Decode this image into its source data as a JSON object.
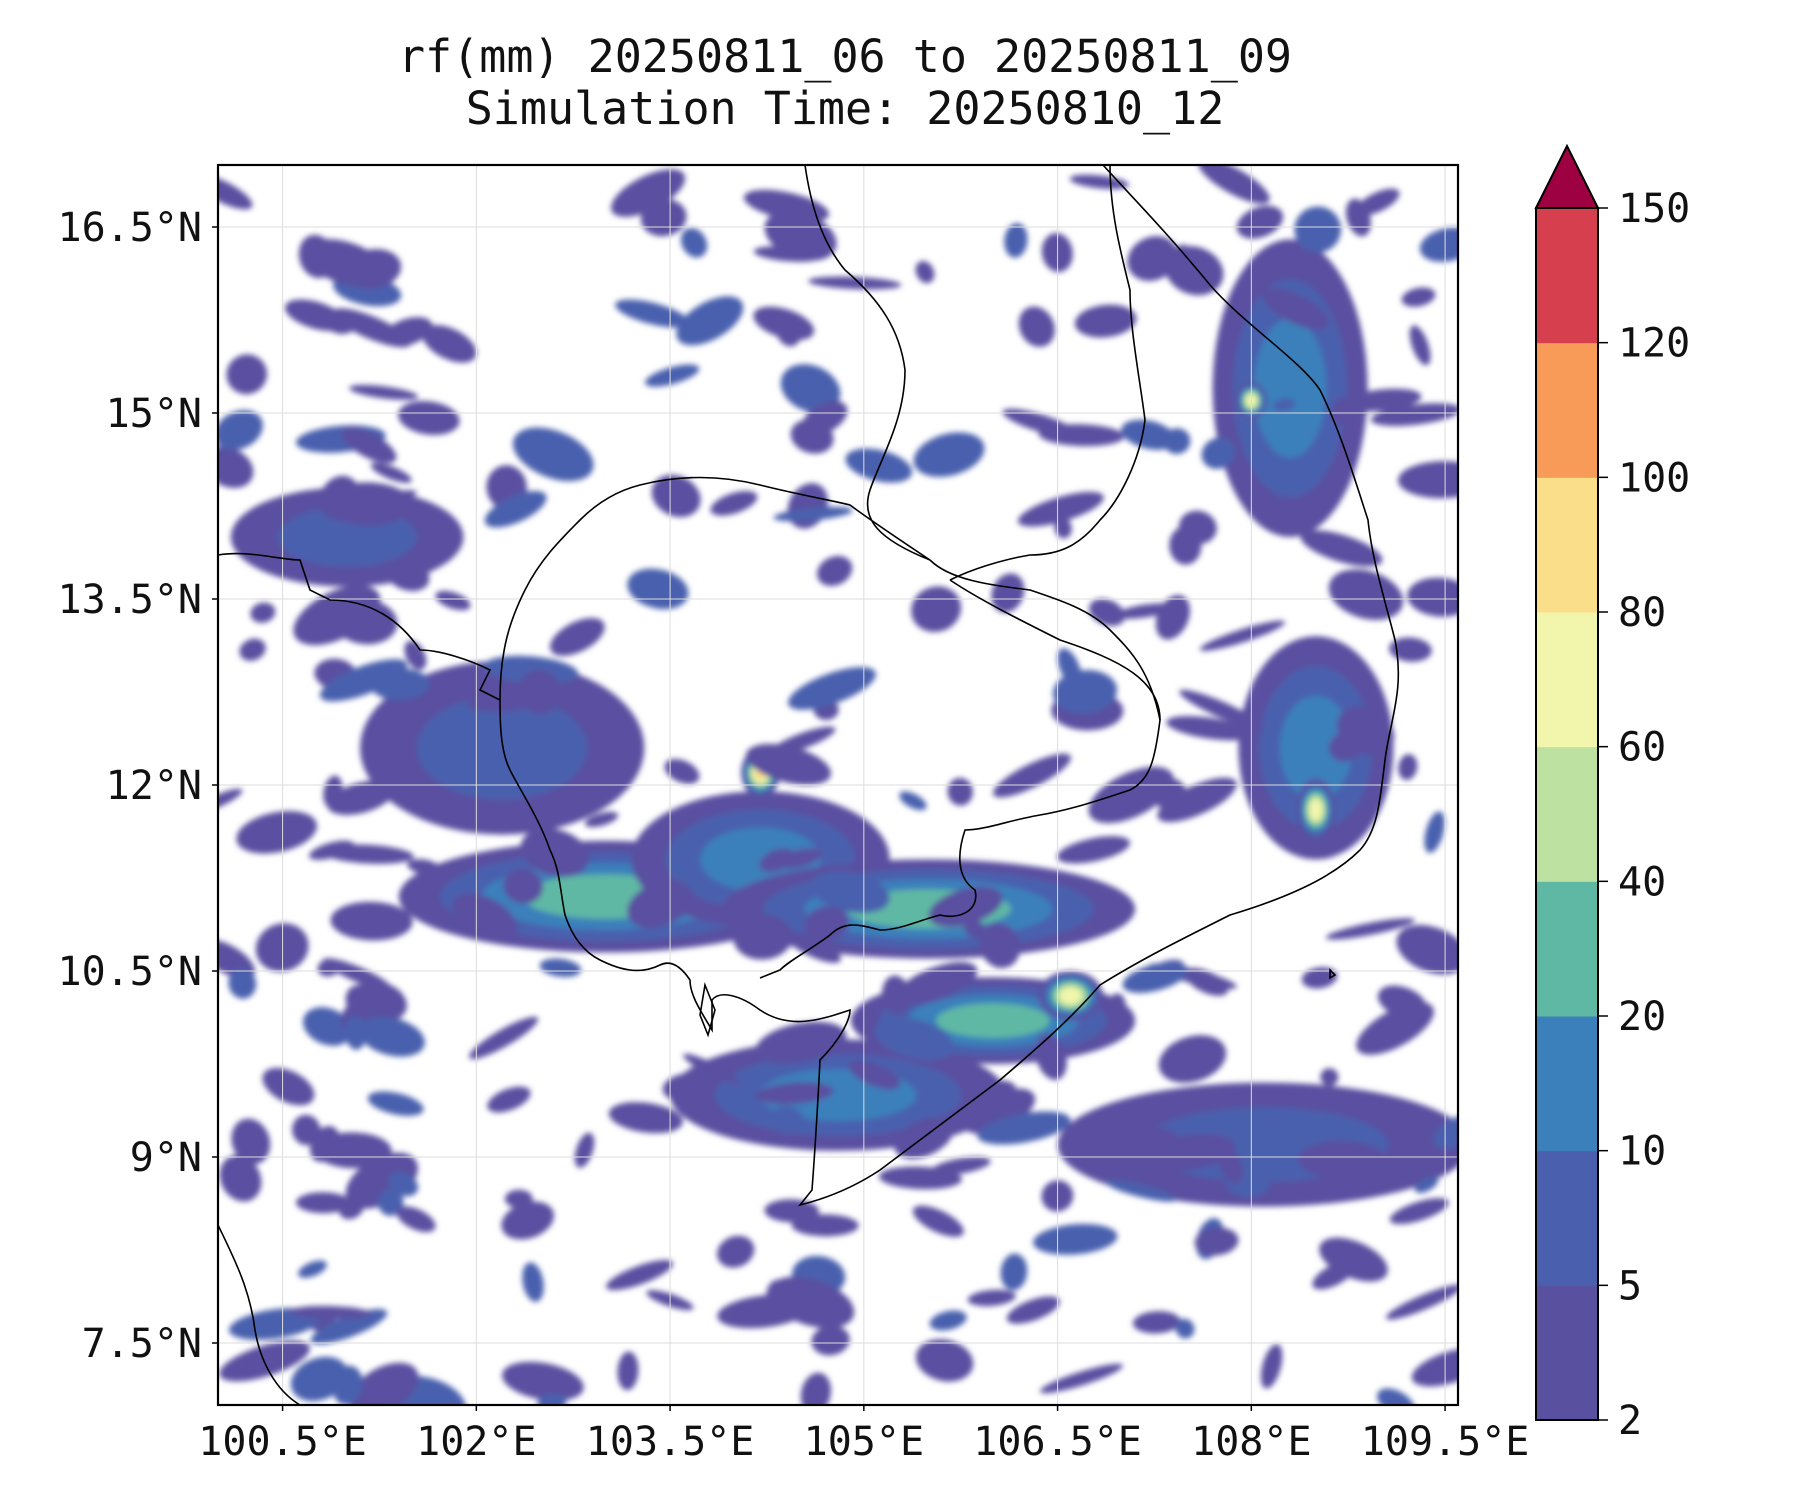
{
  "title": {
    "line1": "rf(mm) 20250811_06 to 20250811_09",
    "line2": "Simulation Time: 20250810_12"
  },
  "map": {
    "lon_range": [
      100.0,
      109.6
    ],
    "lat_range": [
      7.0,
      17.0
    ],
    "lon_ticks": [
      "100.5°E",
      "102°E",
      "103.5°E",
      "105°E",
      "106.5°E",
      "108°E",
      "109.5°E"
    ],
    "lat_ticks": [
      "16.5°N",
      "15°N",
      "13.5°N",
      "12°N",
      "10.5°N",
      "9°N",
      "7.5°N"
    ],
    "gridlines": true
  },
  "colorbar": {
    "levels": [
      "2",
      "5",
      "10",
      "20",
      "40",
      "60",
      "80",
      "100",
      "120",
      "150"
    ],
    "colors": [
      "#5a50a0",
      "#4a60ae",
      "#3b80bb",
      "#5fb8a4",
      "#bde1a0",
      "#f1f6ac",
      "#fbde8a",
      "#f89b58",
      "#d6404e",
      "#9e0142"
    ],
    "extend": "max"
  },
  "chart_data": {
    "type": "heatmap",
    "variable": "rf(mm)",
    "regions": [
      {
        "lon": 102.2,
        "lat": 12.3,
        "rx": 1.1,
        "ry": 0.7,
        "level": 1
      },
      {
        "lon": 103.0,
        "lat": 11.1,
        "rx": 1.6,
        "ry": 0.45,
        "level": 3
      },
      {
        "lon": 104.2,
        "lat": 11.4,
        "rx": 1.0,
        "ry": 0.55,
        "level": 2
      },
      {
        "lon": 105.5,
        "lat": 11.0,
        "rx": 1.6,
        "ry": 0.4,
        "level": 3
      },
      {
        "lon": 106.0,
        "lat": 10.1,
        "rx": 1.1,
        "ry": 0.35,
        "level": 3
      },
      {
        "lon": 104.8,
        "lat": 9.5,
        "rx": 1.3,
        "ry": 0.45,
        "level": 2
      },
      {
        "lon": 108.3,
        "lat": 15.2,
        "rx": 0.6,
        "ry": 1.2,
        "level": 2
      },
      {
        "lon": 108.5,
        "lat": 12.3,
        "rx": 0.6,
        "ry": 0.9,
        "level": 2
      },
      {
        "lon": 104.2,
        "lat": 12.1,
        "rx": 0.15,
        "ry": 0.2,
        "level": 6
      },
      {
        "lon": 108.0,
        "lat": 15.1,
        "rx": 0.12,
        "ry": 0.15,
        "level": 5
      },
      {
        "lon": 108.5,
        "lat": 11.8,
        "rx": 0.15,
        "ry": 0.25,
        "level": 5
      },
      {
        "lon": 106.6,
        "lat": 10.3,
        "rx": 0.25,
        "ry": 0.2,
        "level": 5
      },
      {
        "lon": 108.1,
        "lat": 9.1,
        "rx": 1.6,
        "ry": 0.5,
        "level": 1
      },
      {
        "lon": 101.0,
        "lat": 14.0,
        "rx": 0.9,
        "ry": 0.4,
        "level": 1
      }
    ]
  }
}
